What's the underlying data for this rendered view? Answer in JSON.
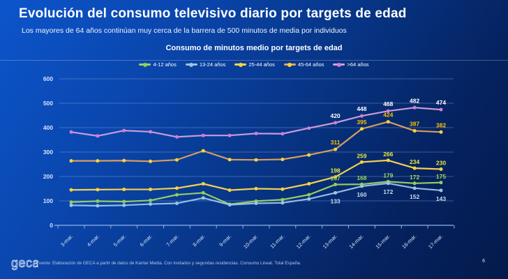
{
  "slide": {
    "title": "Evolución del consumo televisivo diario por targets de edad",
    "subtitle": "Los mayores de 64 años continúan muy cerca de la barrera de 500 minutos de media por individuos",
    "footer_source": "Fuente: Elaboración de GECA a partir de datos de Kantar Media. Con invitados y segundas residencias. Consumo Lineal. Total España.",
    "logo_text": "geca",
    "page_number": "6"
  },
  "chart_data": {
    "type": "line",
    "title": "Consumo de minutos medio por targets de edad",
    "xlabel": "",
    "ylabel": "",
    "ylim": [
      0,
      600
    ],
    "yticks": [
      0,
      100,
      200,
      300,
      400,
      500,
      600
    ],
    "grid": true,
    "legend_position": "top",
    "data_labels_from_index": 10,
    "categories": [
      "3-mar.",
      "4-mar.",
      "5-mar.",
      "6-mar.",
      "7-mar.",
      "8-mar.",
      "9-mar.",
      "10-mar.",
      "11-mar.",
      "12-mar.",
      "13-mar.",
      "14-mar.",
      "15-mar.",
      "16-mar.",
      "17-mar."
    ],
    "series": [
      {
        "name": "4-12 años",
        "line_color": "#9cd563",
        "marker_color": "#92d050",
        "label_color": "#9fd65e",
        "label_dy": -6,
        "values": [
          95,
          99,
          97,
          102,
          125,
          133,
          86,
          99,
          105,
          125,
          167,
          168,
          179,
          172,
          175
        ]
      },
      {
        "name": "13-24 años",
        "line_color": "#9dc3e6",
        "marker_color": "#9dc3e6",
        "label_color": "#cdd9f0",
        "label_dy": 15,
        "values": [
          82,
          80,
          82,
          87,
          90,
          112,
          84,
          90,
          92,
          108,
          133,
          160,
          172,
          152,
          143
        ]
      },
      {
        "name": "25-44 años",
        "line_color": "#ffd94d",
        "marker_color": "#ffd435",
        "label_color": "#e9e93f",
        "label_dy": -6,
        "values": [
          145,
          146,
          147,
          147,
          152,
          170,
          144,
          150,
          148,
          170,
          198,
          259,
          266,
          234,
          230
        ]
      },
      {
        "name": "45-64 años",
        "line_color": "#e2a35e",
        "marker_color": "#ffd435",
        "label_color": "#ffc000",
        "label_dy": -7,
        "values": [
          264,
          264,
          265,
          262,
          268,
          305,
          269,
          268,
          270,
          288,
          311,
          395,
          424,
          387,
          382
        ]
      },
      {
        "name": ">64 años",
        "line_color": "#d2a1dc",
        "marker_color": "#d77bd7",
        "label_color": "#ffffff",
        "label_dy": -7,
        "values": [
          382,
          366,
          388,
          383,
          362,
          368,
          368,
          376,
          375,
          398,
          420,
          448,
          468,
          482,
          474
        ]
      }
    ]
  }
}
